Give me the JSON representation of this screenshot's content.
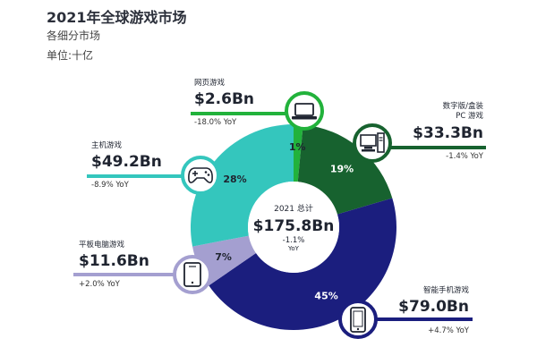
{
  "header": {
    "title": "2021年全球游戏市场",
    "subtitle": "各细分市场",
    "unit": "单位:十亿"
  },
  "center": {
    "label": "2021 总计",
    "value": "$175.8Bn",
    "yoy_value": "-1.1%",
    "yoy_label": "YoY"
  },
  "colors": {
    "web": "#22b23b",
    "pc": "#17622f",
    "mobile": "#1b1e7e",
    "tablet": "#a49fd0",
    "console": "#34c6bd"
  },
  "chart_data": {
    "type": "pie",
    "title": "2021年全球游戏市场",
    "subtitle": "各细分市场",
    "unit": "单位:十亿",
    "total": "$175.8Bn",
    "slices": [
      {
        "key": "web",
        "name": "网页游戏",
        "value": 2.6,
        "display_value": "$2.6Bn",
        "percent": 1,
        "pct_label": "1%",
        "yoy": "-18.0% YoY",
        "icon": "laptop-icon"
      },
      {
        "key": "pc",
        "name_line1": "数字版/盒装",
        "name_line2": "PC 游戏",
        "value": 33.3,
        "display_value": "$33.3Bn",
        "percent": 19,
        "pct_label": "19%",
        "yoy": "-1.4% YoY",
        "icon": "desktop-pc-icon"
      },
      {
        "key": "mobile",
        "name": "智能手机游戏",
        "value": 79.0,
        "display_value": "$79.0Bn",
        "percent": 45,
        "pct_label": "45%",
        "yoy": "+4.7% YoY",
        "icon": "smartphone-icon"
      },
      {
        "key": "tablet",
        "name": "平板电脑游戏",
        "value": 11.6,
        "display_value": "$11.6Bn",
        "percent": 7,
        "pct_label": "7%",
        "yoy": "+2.0% YoY",
        "icon": "tablet-icon"
      },
      {
        "key": "console",
        "name": "主机游戏",
        "value": 49.2,
        "display_value": "$49.2Bn",
        "percent": 28,
        "pct_label": "28%",
        "yoy": "-8.9% YoY",
        "icon": "gamepad-icon"
      }
    ]
  }
}
